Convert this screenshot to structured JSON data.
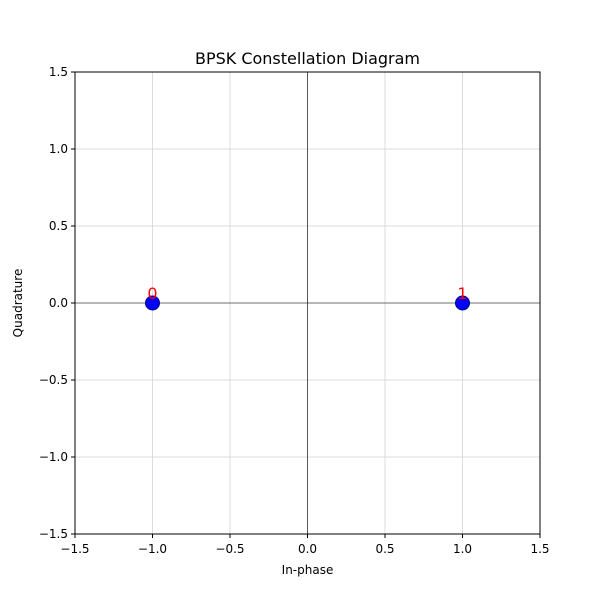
{
  "chart_data": {
    "type": "scatter",
    "title": "BPSK Constellation Diagram",
    "xlabel": "In-phase",
    "ylabel": "Quadrature",
    "xlim": [
      -1.5,
      1.5
    ],
    "ylim": [
      -1.5,
      1.5
    ],
    "xticks": [
      -1.5,
      -1.0,
      -0.5,
      0.0,
      0.5,
      1.0,
      1.5
    ],
    "yticks": [
      -1.5,
      -1.0,
      -0.5,
      0.0,
      0.5,
      1.0,
      1.5
    ],
    "xtick_labels": [
      "−1.5",
      "−1.0",
      "−0.5",
      "0.0",
      "0.5",
      "1.0",
      "1.5"
    ],
    "ytick_labels": [
      "−1.5",
      "−1.0",
      "−0.5",
      "0.0",
      "0.5",
      "1.0",
      "1.5"
    ],
    "grid": true,
    "reference_lines": {
      "x": 0,
      "y": 0
    },
    "points": [
      {
        "x": -1,
        "y": 0,
        "label": "0"
      },
      {
        "x": 1,
        "y": 0,
        "label": "1"
      }
    ],
    "colors": {
      "point": "#0000ff",
      "point_edge": "#00008b",
      "label": "#ff0000",
      "grid": "#d3d3d3",
      "axes": "#000000",
      "reference": "#000000"
    }
  }
}
